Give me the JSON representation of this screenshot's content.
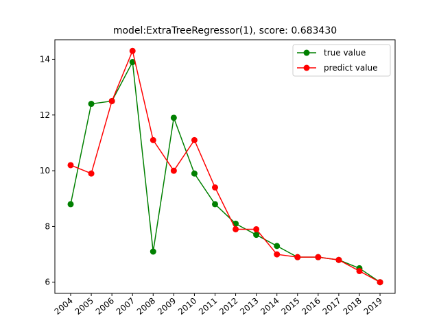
{
  "chart_data": {
    "type": "line",
    "title": "model:ExtraTreeRegressor(1), score: 0.683430",
    "xlabel": "",
    "ylabel": "",
    "categories": [
      "2004",
      "2005",
      "2006",
      "2007",
      "2008",
      "2009",
      "2010",
      "2011",
      "2012",
      "2013",
      "2014",
      "2015",
      "2016",
      "2017",
      "2018",
      "2019"
    ],
    "ylim": [
      5.6,
      14.7
    ],
    "yticks": [
      6,
      8,
      10,
      12,
      14
    ],
    "grid": false,
    "legend_position": "top-right",
    "series": [
      {
        "name": "true value",
        "color": "#008000",
        "marker": "circle",
        "values": [
          8.8,
          12.4,
          12.5,
          13.9,
          7.1,
          11.9,
          9.9,
          8.8,
          8.1,
          7.7,
          7.3,
          6.9,
          6.9,
          6.8,
          6.5,
          6.0
        ]
      },
      {
        "name": "predict value",
        "color": "#ff0000",
        "marker": "circle",
        "values": [
          10.2,
          9.9,
          12.5,
          14.3,
          11.1,
          10.0,
          11.1,
          9.4,
          7.9,
          7.9,
          7.0,
          6.9,
          6.9,
          6.8,
          6.4,
          6.0
        ]
      }
    ]
  }
}
